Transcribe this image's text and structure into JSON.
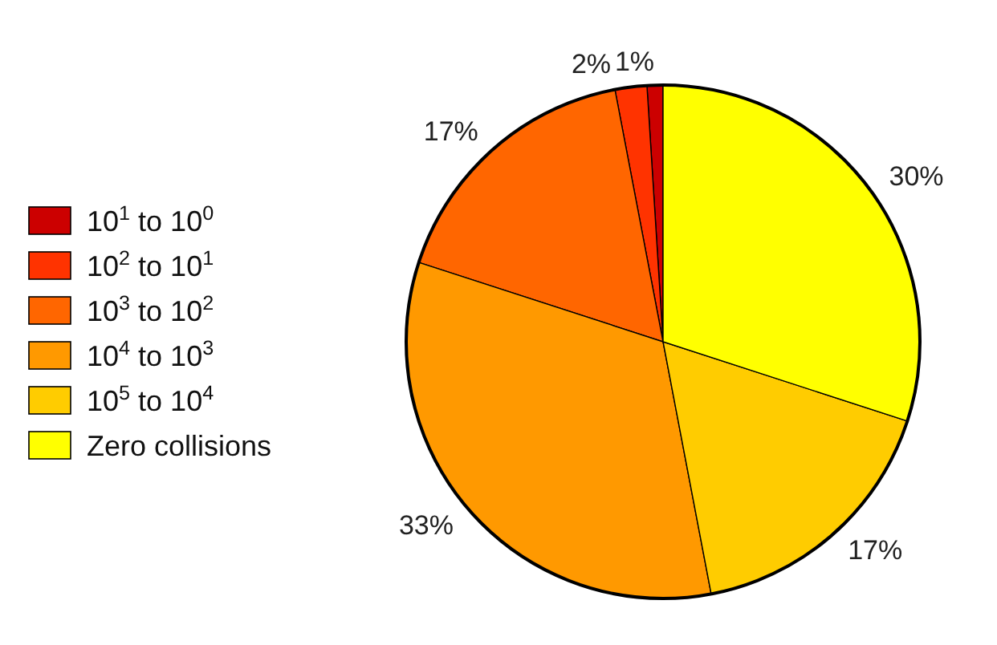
{
  "chart_data": {
    "type": "pie",
    "categories": [
      "10$^{1}$ to 10$^{0}$",
      "10$^{2}$ to 10$^{1}$",
      "10$^{3}$ to 10$^{2}$",
      "10$^{4}$ to 10$^{3}$",
      "10$^{5}$ to 10$^{4}$",
      "Zero collisions"
    ],
    "values": [
      1,
      2,
      17,
      33,
      17,
      30
    ],
    "value_labels": [
      "1%",
      "2%",
      "17%",
      "33%",
      "17%",
      "30%"
    ],
    "colors": [
      "#cc0000",
      "#ff3300",
      "#ff6600",
      "#ff9900",
      "#ffcc00",
      "#ffff00"
    ],
    "legend": "left"
  }
}
